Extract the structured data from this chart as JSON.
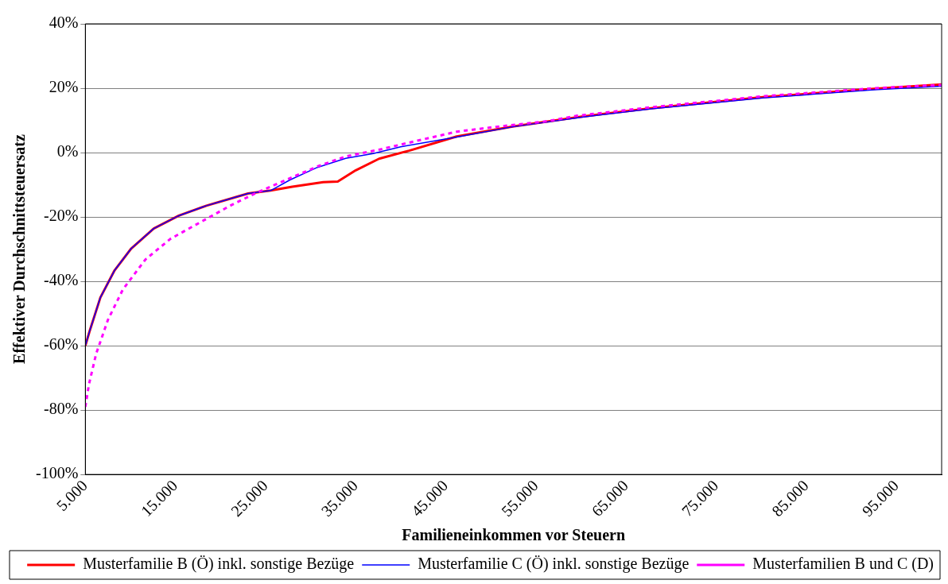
{
  "chart_data": {
    "type": "line",
    "xlabel": "Familieneinkommen vor Steuern",
    "ylabel": "Effektiver Durchschnittsteuersatz",
    "xlim": [
      5000,
      100000
    ],
    "xticks": [
      {
        "value": 5000,
        "label": "5.000"
      },
      {
        "value": 15000,
        "label": "15.000"
      },
      {
        "value": 25000,
        "label": "25.000"
      },
      {
        "value": 35000,
        "label": "35.000"
      },
      {
        "value": 45000,
        "label": "45.000"
      },
      {
        "value": 55000,
        "label": "55.000"
      },
      {
        "value": 65000,
        "label": "65.000"
      },
      {
        "value": 75000,
        "label": "75.000"
      },
      {
        "value": 85000,
        "label": "85.000"
      },
      {
        "value": 95000,
        "label": "95.000"
      }
    ],
    "ylim": [
      -100,
      40
    ],
    "yticks": [
      {
        "value": -100,
        "label": "-100%"
      },
      {
        "value": -80,
        "label": "-80%"
      },
      {
        "value": -60,
        "label": "-60%"
      },
      {
        "value": -40,
        "label": "-40%"
      },
      {
        "value": -20,
        "label": "-20%"
      },
      {
        "value": 0,
        "label": "0%"
      },
      {
        "value": 20,
        "label": "20%"
      },
      {
        "value": 40,
        "label": "40%"
      }
    ],
    "grid": "y",
    "legend": "bottom",
    "marker": "none",
    "series": [
      {
        "name": "Musterfamilie B (Ö) inkl. sonstige Bezüge",
        "color": "#ff0000",
        "line_style": "solid",
        "x": [
          5000,
          5460,
          6670,
          8240,
          10090,
          12590,
          15370,
          18430,
          23060,
          25560,
          27960,
          31390,
          33000,
          35000,
          37590,
          40930,
          46200,
          52400,
          60090,
          67780,
          80180,
          92500,
          100000
        ],
        "values": [
          -60,
          -55.6,
          -45,
          -36.6,
          -29.8,
          -23.6,
          -19.6,
          -16.5,
          -12.7,
          -11.8,
          -10.6,
          -9.2,
          -9,
          -5.5,
          -1.9,
          0.6,
          5,
          8.1,
          11.2,
          13.8,
          17.2,
          19.8,
          21.2
        ]
      },
      {
        "name": "Musterfamilie C (Ö) inkl. sonstige Bezüge",
        "color": "#0000ff",
        "line_style": "solid",
        "x": [
          5000,
          5460,
          6670,
          8240,
          10090,
          12590,
          15370,
          18430,
          23060,
          25560,
          27690,
          30740,
          33890,
          36940,
          39990,
          46200,
          52400,
          60090,
          67780,
          80180,
          92500,
          100000
        ],
        "values": [
          -60,
          -55.6,
          -45,
          -36.6,
          -29.8,
          -23.6,
          -19.6,
          -16.5,
          -12.7,
          -11.8,
          -8.5,
          -4.6,
          -1.8,
          -0.3,
          1.8,
          4.8,
          8,
          11,
          13.6,
          17,
          19.5,
          20.6
        ]
      },
      {
        "name": "Musterfamilien B und C (D)",
        "color": "#ff00ff",
        "line_style": "dashed",
        "x": [
          5000,
          5400,
          6200,
          7500,
          9170,
          11670,
          14440,
          18430,
          21200,
          23980,
          27690,
          30740,
          33890,
          37590,
          41850,
          46200,
          50560,
          56390,
          59440,
          67780,
          80180,
          92500,
          100000
        ],
        "values": [
          -79,
          -72,
          -62.5,
          -52,
          -42.5,
          -33.2,
          -26.8,
          -20.6,
          -16.3,
          -12.5,
          -8,
          -4.3,
          -1.2,
          0.9,
          3.7,
          6.5,
          8,
          9.8,
          11.4,
          14.1,
          17.5,
          20,
          21
        ]
      }
    ]
  }
}
